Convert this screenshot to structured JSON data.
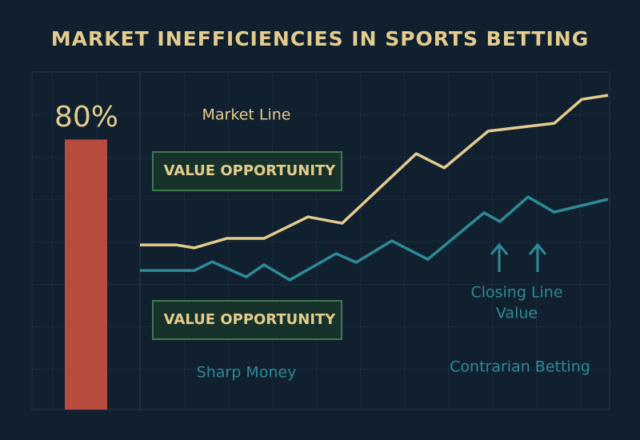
{
  "title": "MARKET INEFFICIENCIES IN SPORTS BETTING",
  "chart_data": [
    {
      "type": "bar",
      "values": [
        80
      ],
      "value_labels": [
        "80%"
      ],
      "ylim": [
        0,
        100
      ],
      "color": "#b84a3e"
    },
    {
      "type": "line",
      "xlim": [
        0,
        100
      ],
      "ylim": [
        0,
        100
      ],
      "series": [
        {
          "name": "Market Line",
          "color": "#e4cc8e",
          "x": [
            0,
            7.7,
            11.6,
            18.5,
            26.5,
            35.9,
            43.2,
            59,
            65,
            74.4,
            88.5,
            94.4,
            100
          ],
          "values": [
            48.8,
            48.8,
            47.9,
            50.7,
            50.7,
            57.1,
            55.2,
            75.8,
            71.6,
            82.5,
            84.8,
            91.9,
            93.1
          ]
        },
        {
          "name": "Sharp Money",
          "color": "#2e8a96",
          "x": [
            0,
            11.6,
            15.4,
            22.7,
            26.5,
            32,
            41.9,
            46.2,
            53.8,
            61.5,
            73.5,
            76.9,
            82.9,
            88.5,
            100
          ],
          "values": [
            41.2,
            41.2,
            43.8,
            39.3,
            42.9,
            38.4,
            46.2,
            43.6,
            50,
            44.5,
            58.3,
            55.7,
            63,
            58.5,
            62.3
          ]
        }
      ],
      "annotations": [
        "VALUE OPPORTUNITY",
        "VALUE OPPORTUNITY",
        "Closing Line",
        "Value",
        "Contrarian Betting"
      ]
    }
  ]
}
